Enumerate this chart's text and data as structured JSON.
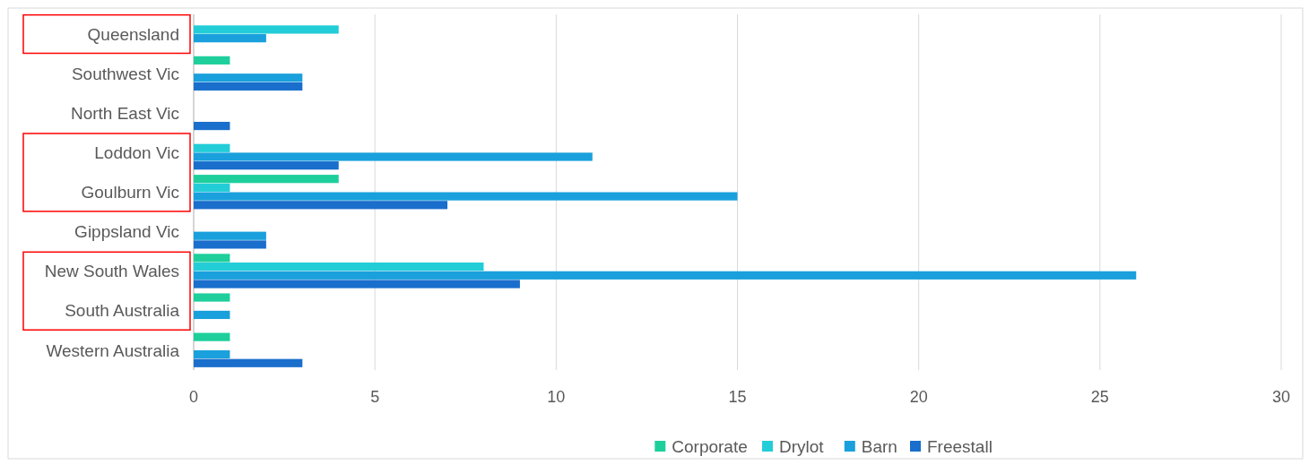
{
  "chart_data": {
    "type": "bar",
    "orientation": "horizontal",
    "categories": [
      "Queensland",
      "Southwest Vic",
      "North East Vic",
      "Loddon Vic",
      "Goulburn Vic",
      "Gippsland Vic",
      "New South Wales",
      "South Australia",
      "Western Australia"
    ],
    "series": [
      {
        "name": "Corporate",
        "color": "#1ecf9c",
        "values": [
          0,
          1,
          0,
          0,
          4,
          0,
          1,
          1,
          1
        ]
      },
      {
        "name": "Drylot",
        "color": "#22cdd8",
        "values": [
          4,
          0,
          0,
          1,
          1,
          0,
          8,
          0,
          0
        ]
      },
      {
        "name": "Barn",
        "color": "#1aa0dc",
        "values": [
          2,
          3,
          0,
          11,
          15,
          2,
          26,
          1,
          1
        ]
      },
      {
        "name": "Freestall",
        "color": "#1a6ecc",
        "values": [
          0,
          3,
          1,
          4,
          7,
          2,
          9,
          0,
          3
        ]
      }
    ],
    "xlim": [
      0,
      30
    ],
    "xticks": [
      0,
      5,
      10,
      15,
      20,
      25,
      30
    ],
    "grid": "x",
    "legend": "bottom"
  }
}
